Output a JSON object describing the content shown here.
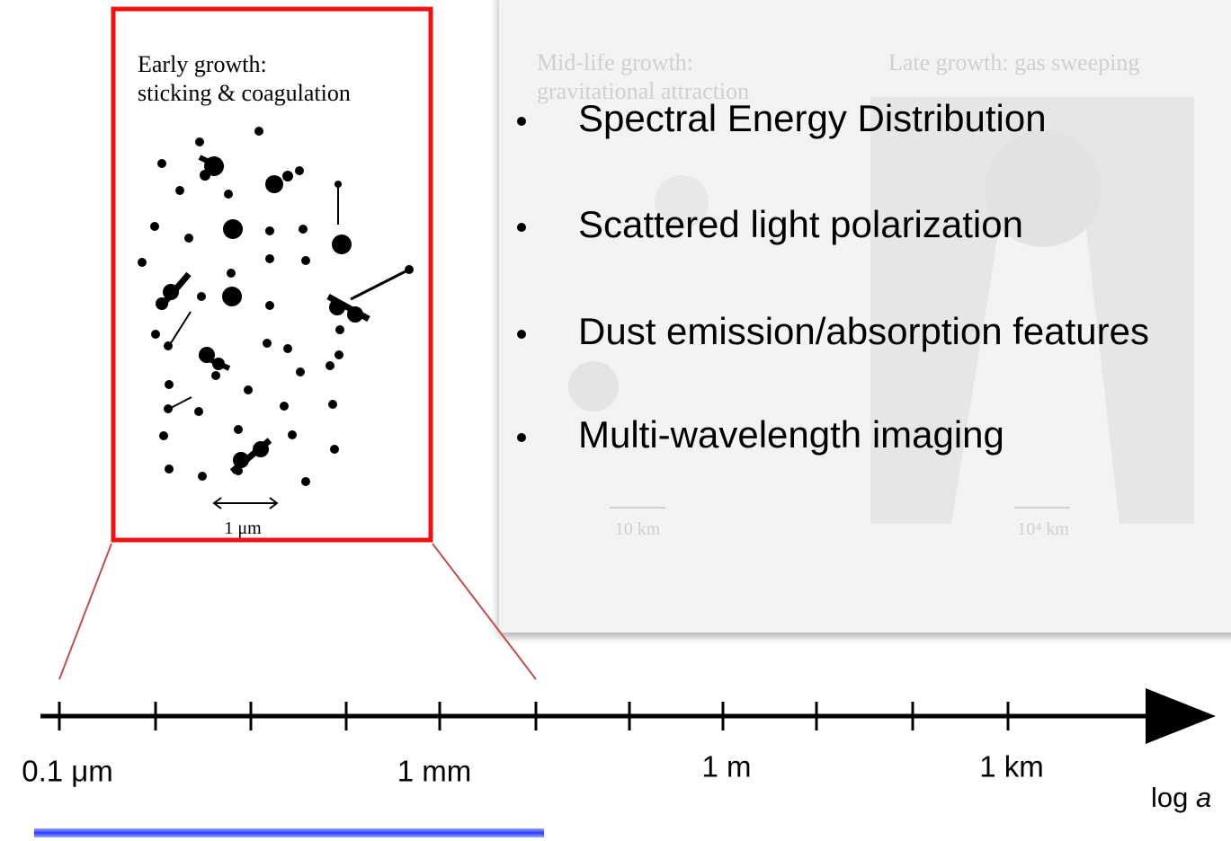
{
  "inset_panel": {
    "title_line1": "Early growth:",
    "title_line2": "sticking & coagulation",
    "scale_label": "1 μm"
  },
  "background_panel": {
    "mid_title_line1": "Mid-life growth:",
    "mid_title_line2": "gravitational attraction",
    "late_title": "Late growth: gas sweeping",
    "mid_scale_label": "10 km",
    "late_scale_label": "10⁴ km"
  },
  "bullets": [
    "Spectral Energy Distribution",
    "Scattered light polarization",
    "Dust emission/absorption features",
    "Multi-wavelength imaging"
  ],
  "axis": {
    "labels": [
      "0.1 μm",
      "1 mm",
      "1 m",
      "1 km"
    ],
    "axis_label": {
      "text": "log",
      "variable": "a"
    }
  }
}
